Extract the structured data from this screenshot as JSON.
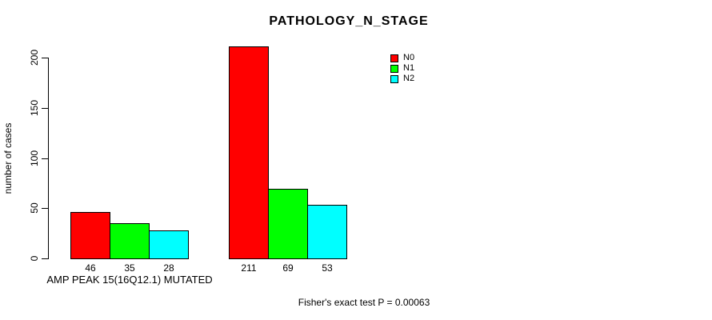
{
  "title": "PATHOLOGY_N_STAGE",
  "ylabel": "number of cases",
  "footer": "Fisher's exact test P = 0.00063",
  "chart_data": {
    "type": "bar",
    "grouped": true,
    "title": "PATHOLOGY_N_STAGE",
    "xlabel": "",
    "ylabel": "number of cases",
    "categories": [
      "AMP PEAK 15(16Q12.1) MUTATED",
      ""
    ],
    "series": [
      {
        "name": "N0",
        "color": "#ff0000",
        "values": [
          46,
          211
        ]
      },
      {
        "name": "N1",
        "color": "#00ff00",
        "values": [
          35,
          69
        ]
      },
      {
        "name": "N2",
        "color": "#00ffff",
        "values": [
          28,
          53
        ]
      }
    ],
    "yticks": [
      0,
      50,
      100,
      150,
      200
    ],
    "ylim": [
      0,
      200
    ],
    "grid": false,
    "legend_position": "top-right",
    "bar_value_labels_shown": true,
    "annotation": "Fisher's exact test P = 0.00063",
    "bar_border_color": "#000000",
    "background_color": "#ffffff"
  }
}
